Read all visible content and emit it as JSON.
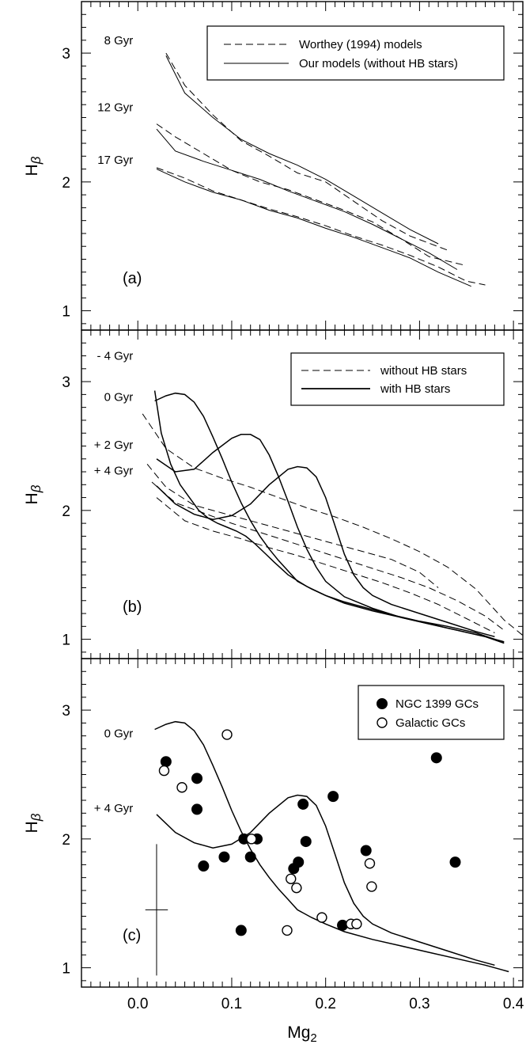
{
  "figure": {
    "xlabel_main": "Mg",
    "xlabel_sub": "2"
  },
  "chart_data": [
    {
      "type": "line",
      "panel_label": "(a)",
      "ylabel_main": "H",
      "ylabel_greek": "β",
      "xlim": [
        -0.06,
        0.41
      ],
      "ylim": [
        0.85,
        3.4
      ],
      "yticks": [
        1,
        2,
        3
      ],
      "legend": {
        "position": "top-right",
        "entries": [
          {
            "label": "Worthey (1994) models",
            "style": "dashed"
          },
          {
            "label": "Our models (without HB stars)",
            "style": "solid"
          }
        ]
      },
      "annotations": [
        {
          "text": "8 Gyr",
          "x": -0.005,
          "y": 3.1
        },
        {
          "text": "12 Gyr",
          "x": -0.005,
          "y": 2.58
        },
        {
          "text": "17 Gyr",
          "x": -0.005,
          "y": 2.17
        }
      ],
      "series": [
        {
          "style": "dashed",
          "x": [
            0.03,
            0.05,
            0.08,
            0.11,
            0.14,
            0.17,
            0.2,
            0.23,
            0.26,
            0.29,
            0.33
          ],
          "y": [
            3.0,
            2.75,
            2.52,
            2.32,
            2.2,
            2.07,
            2.0,
            1.85,
            1.7,
            1.58,
            1.47
          ]
        },
        {
          "style": "solid",
          "x": [
            0.03,
            0.05,
            0.08,
            0.11,
            0.14,
            0.17,
            0.2,
            0.23,
            0.26,
            0.29,
            0.32
          ],
          "y": [
            2.98,
            2.69,
            2.5,
            2.33,
            2.22,
            2.13,
            2.02,
            1.89,
            1.76,
            1.63,
            1.52
          ]
        },
        {
          "style": "dashed",
          "x": [
            0.02,
            0.04,
            0.07,
            0.1,
            0.13,
            0.16,
            0.19,
            0.22,
            0.25,
            0.28,
            0.31,
            0.35
          ],
          "y": [
            2.45,
            2.35,
            2.22,
            2.09,
            2.0,
            1.94,
            1.86,
            1.78,
            1.69,
            1.56,
            1.42,
            1.35
          ]
        },
        {
          "style": "solid",
          "x": [
            0.02,
            0.04,
            0.07,
            0.1,
            0.13,
            0.16,
            0.19,
            0.22,
            0.25,
            0.28,
            0.31,
            0.34
          ],
          "y": [
            2.41,
            2.24,
            2.16,
            2.09,
            2.02,
            1.93,
            1.85,
            1.77,
            1.67,
            1.56,
            1.45,
            1.32
          ]
        },
        {
          "style": "dashed",
          "x": [
            0.02,
            0.05,
            0.08,
            0.11,
            0.14,
            0.17,
            0.2,
            0.23,
            0.26,
            0.29,
            0.32,
            0.35,
            0.37
          ],
          "y": [
            2.11,
            2.03,
            1.93,
            1.86,
            1.79,
            1.73,
            1.66,
            1.58,
            1.51,
            1.43,
            1.34,
            1.23,
            1.2
          ]
        },
        {
          "style": "solid",
          "x": [
            0.02,
            0.05,
            0.08,
            0.11,
            0.14,
            0.17,
            0.2,
            0.23,
            0.26,
            0.29,
            0.32,
            0.355
          ],
          "y": [
            2.1,
            2.0,
            1.92,
            1.86,
            1.78,
            1.72,
            1.64,
            1.57,
            1.49,
            1.41,
            1.3,
            1.19
          ]
        }
      ]
    },
    {
      "type": "line",
      "panel_label": "(b)",
      "ylabel_main": "H",
      "ylabel_greek": "β",
      "xlim": [
        -0.06,
        0.41
      ],
      "ylim": [
        0.85,
        3.4
      ],
      "yticks": [
        1,
        2,
        3
      ],
      "legend": {
        "position": "top-right",
        "entries": [
          {
            "label": "without HB stars",
            "style": "dashed"
          },
          {
            "label": "with HB stars",
            "style": "solid"
          }
        ]
      },
      "annotations": [
        {
          "text": "- 4 Gyr",
          "x": -0.005,
          "y": 3.2
        },
        {
          "text": "0 Gyr",
          "x": -0.005,
          "y": 2.88
        },
        {
          "text": "+ 2 Gyr",
          "x": -0.005,
          "y": 2.51
        },
        {
          "text": "+ 4 Gyr",
          "x": -0.005,
          "y": 2.31
        }
      ],
      "series": [
        {
          "style": "dashed",
          "x": [
            0.005,
            0.03,
            0.06,
            0.09,
            0.12,
            0.15,
            0.18,
            0.21,
            0.24,
            0.27,
            0.3,
            0.33,
            0.36,
            0.39,
            0.41
          ],
          "y": [
            2.75,
            2.48,
            2.33,
            2.25,
            2.18,
            2.1,
            2.02,
            1.95,
            1.87,
            1.78,
            1.68,
            1.56,
            1.39,
            1.15,
            1.03
          ]
        },
        {
          "style": "dashed",
          "x": [
            0.01,
            0.03,
            0.06,
            0.09,
            0.12,
            0.15,
            0.18,
            0.21,
            0.24,
            0.27,
            0.3,
            0.32
          ],
          "y": [
            2.36,
            2.18,
            2.04,
            1.98,
            1.92,
            1.86,
            1.8,
            1.74,
            1.68,
            1.62,
            1.52,
            1.4
          ]
        },
        {
          "style": "dashed",
          "x": [
            0.015,
            0.04,
            0.07,
            0.1,
            0.13,
            0.16,
            0.19,
            0.22,
            0.25,
            0.28,
            0.31,
            0.34,
            0.37,
            0.39
          ],
          "y": [
            2.22,
            2.06,
            1.98,
            1.9,
            1.83,
            1.76,
            1.69,
            1.62,
            1.55,
            1.48,
            1.4,
            1.3,
            1.18,
            1.07
          ]
        },
        {
          "style": "dashed",
          "x": [
            0.02,
            0.05,
            0.08,
            0.11,
            0.14,
            0.17,
            0.2,
            0.23,
            0.26,
            0.29,
            0.32,
            0.35,
            0.38
          ],
          "y": [
            2.1,
            1.92,
            1.84,
            1.78,
            1.71,
            1.65,
            1.58,
            1.51,
            1.44,
            1.36,
            1.27,
            1.16,
            1.05
          ]
        },
        {
          "style": "solid",
          "x": [
            0.018,
            0.025,
            0.035,
            0.045,
            0.055,
            0.065,
            0.075,
            0.085,
            0.095,
            0.105,
            0.115,
            0.125,
            0.135,
            0.145,
            0.16,
            0.18,
            0.2,
            0.22,
            0.24,
            0.27,
            0.3,
            0.33,
            0.36,
            0.38
          ],
          "y": [
            2.93,
            2.6,
            2.36,
            2.2,
            2.1,
            2.0,
            1.94,
            1.9,
            1.87,
            1.84,
            1.8,
            1.74,
            1.67,
            1.6,
            1.5,
            1.41,
            1.34,
            1.29,
            1.25,
            1.19,
            1.14,
            1.1,
            1.05,
            1.0
          ]
        },
        {
          "style": "solid",
          "x": [
            0.018,
            0.03,
            0.04,
            0.05,
            0.06,
            0.07,
            0.08,
            0.09,
            0.1,
            0.11,
            0.12,
            0.13,
            0.14,
            0.15,
            0.16,
            0.17,
            0.185,
            0.2,
            0.22,
            0.25,
            0.28,
            0.31,
            0.34,
            0.37,
            0.39
          ],
          "y": [
            2.85,
            2.89,
            2.91,
            2.9,
            2.84,
            2.73,
            2.57,
            2.4,
            2.22,
            2.06,
            1.92,
            1.8,
            1.7,
            1.61,
            1.53,
            1.45,
            1.39,
            1.34,
            1.28,
            1.22,
            1.17,
            1.12,
            1.07,
            1.02,
            0.97
          ]
        },
        {
          "style": "solid",
          "x": [
            0.02,
            0.04,
            0.06,
            0.08,
            0.1,
            0.11,
            0.12,
            0.13,
            0.14,
            0.15,
            0.16,
            0.17,
            0.18,
            0.19,
            0.2,
            0.22,
            0.25,
            0.28,
            0.31,
            0.34,
            0.37,
            0.39
          ],
          "y": [
            2.4,
            2.3,
            2.32,
            2.45,
            2.56,
            2.59,
            2.59,
            2.55,
            2.43,
            2.26,
            2.07,
            1.87,
            1.7,
            1.56,
            1.45,
            1.33,
            1.24,
            1.17,
            1.12,
            1.07,
            1.02,
            0.98
          ]
        },
        {
          "style": "solid",
          "x": [
            0.02,
            0.04,
            0.06,
            0.08,
            0.1,
            0.12,
            0.14,
            0.16,
            0.17,
            0.18,
            0.19,
            0.2,
            0.21,
            0.22,
            0.23,
            0.24,
            0.25,
            0.27,
            0.3,
            0.33,
            0.36,
            0.38
          ],
          "y": [
            2.19,
            2.05,
            1.97,
            1.93,
            1.96,
            2.05,
            2.2,
            2.32,
            2.34,
            2.33,
            2.26,
            2.1,
            1.88,
            1.66,
            1.5,
            1.4,
            1.34,
            1.27,
            1.2,
            1.13,
            1.06,
            1.02
          ]
        }
      ]
    },
    {
      "type": "scatter",
      "panel_label": "(c)",
      "ylabel_main": "H",
      "ylabel_greek": "β",
      "xlim": [
        -0.06,
        0.41
      ],
      "ylim": [
        0.85,
        3.4
      ],
      "yticks": [
        1,
        2,
        3
      ],
      "legend": {
        "position": "top-right",
        "entries": [
          {
            "label": "NGC 1399 GCs",
            "marker": "filled-circle"
          },
          {
            "label": "Galactic GCs",
            "marker": "open-circle"
          }
        ]
      },
      "annotations": [
        {
          "text": "0 Gyr",
          "x": -0.005,
          "y": 2.82
        },
        {
          "text": "+ 4 Gyr",
          "x": -0.005,
          "y": 2.24
        }
      ],
      "error_bar": {
        "x": 0.02,
        "y": 1.45,
        "xerr": 0.012,
        "yerr": 0.51
      },
      "series": [
        {
          "style": "solid",
          "x": [
            0.018,
            0.03,
            0.04,
            0.05,
            0.06,
            0.07,
            0.08,
            0.09,
            0.1,
            0.11,
            0.12,
            0.13,
            0.14,
            0.15,
            0.16,
            0.17,
            0.185,
            0.2,
            0.22,
            0.25,
            0.28,
            0.31,
            0.34,
            0.37,
            0.395
          ],
          "y": [
            2.85,
            2.89,
            2.91,
            2.9,
            2.84,
            2.73,
            2.57,
            2.4,
            2.22,
            2.06,
            1.92,
            1.8,
            1.7,
            1.61,
            1.53,
            1.45,
            1.39,
            1.34,
            1.28,
            1.22,
            1.17,
            1.12,
            1.07,
            1.02,
            0.97
          ]
        },
        {
          "style": "solid",
          "x": [
            0.02,
            0.04,
            0.06,
            0.08,
            0.1,
            0.12,
            0.14,
            0.16,
            0.17,
            0.18,
            0.19,
            0.2,
            0.21,
            0.22,
            0.23,
            0.24,
            0.25,
            0.27,
            0.3,
            0.33,
            0.36,
            0.38
          ],
          "y": [
            2.19,
            2.05,
            1.97,
            1.93,
            1.96,
            2.05,
            2.2,
            2.32,
            2.34,
            2.33,
            2.26,
            2.1,
            1.88,
            1.66,
            1.5,
            1.4,
            1.34,
            1.27,
            1.2,
            1.13,
            1.06,
            1.02
          ]
        }
      ],
      "points_filled": [
        {
          "x": 0.03,
          "y": 2.6
        },
        {
          "x": 0.063,
          "y": 2.47
        },
        {
          "x": 0.063,
          "y": 2.23
        },
        {
          "x": 0.07,
          "y": 1.79
        },
        {
          "x": 0.092,
          "y": 1.86
        },
        {
          "x": 0.11,
          "y": 1.29
        },
        {
          "x": 0.113,
          "y": 2.0
        },
        {
          "x": 0.12,
          "y": 1.86
        },
        {
          "x": 0.127,
          "y": 2.0
        },
        {
          "x": 0.166,
          "y": 1.77
        },
        {
          "x": 0.171,
          "y": 1.82
        },
        {
          "x": 0.176,
          "y": 2.27
        },
        {
          "x": 0.179,
          "y": 1.98
        },
        {
          "x": 0.208,
          "y": 2.33
        },
        {
          "x": 0.218,
          "y": 1.33
        },
        {
          "x": 0.243,
          "y": 1.91
        },
        {
          "x": 0.318,
          "y": 2.63
        },
        {
          "x": 0.338,
          "y": 1.82
        }
      ],
      "points_open": [
        {
          "x": 0.028,
          "y": 2.53
        },
        {
          "x": 0.047,
          "y": 2.4
        },
        {
          "x": 0.095,
          "y": 2.81
        },
        {
          "x": 0.121,
          "y": 2.0
        },
        {
          "x": 0.159,
          "y": 1.29
        },
        {
          "x": 0.163,
          "y": 1.69
        },
        {
          "x": 0.169,
          "y": 1.62
        },
        {
          "x": 0.196,
          "y": 1.39
        },
        {
          "x": 0.227,
          "y": 1.34
        },
        {
          "x": 0.233,
          "y": 1.34
        },
        {
          "x": 0.247,
          "y": 1.81
        },
        {
          "x": 0.249,
          "y": 1.63
        }
      ]
    }
  ],
  "xticks": {
    "values": [
      0.0,
      0.1,
      0.2,
      0.3,
      0.4
    ],
    "labels": [
      "0.0",
      "0.1",
      "0.2",
      "0.3",
      "0.4"
    ]
  }
}
